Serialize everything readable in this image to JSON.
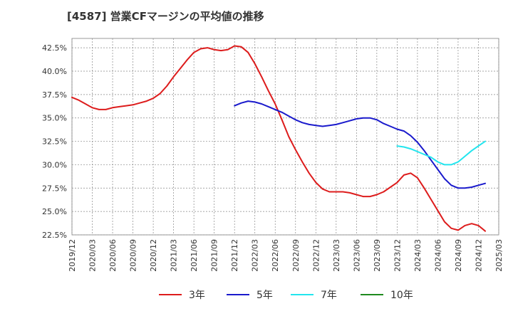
{
  "chart_data": {
    "type": "line",
    "title": "[4587]  営業CFマージンの平均値の推移",
    "xlabel": "",
    "ylabel": "",
    "ylim": [
      22.5,
      43.5
    ],
    "y_ticks": [
      22.5,
      25.0,
      27.5,
      30.0,
      32.5,
      35.0,
      37.5,
      40.0,
      42.5
    ],
    "y_tick_format": "percent_1dp",
    "x_range": [
      "2019-12",
      "2025-03"
    ],
    "x_ticks": [
      "2019/12",
      "2020/03",
      "2020/06",
      "2020/09",
      "2020/12",
      "2021/03",
      "2021/06",
      "2021/09",
      "2021/12",
      "2022/03",
      "2022/06",
      "2022/09",
      "2022/12",
      "2023/03",
      "2023/06",
      "2023/09",
      "2023/12",
      "2024/03",
      "2024/06",
      "2024/09",
      "2024/12",
      "2025/03"
    ],
    "grid": true,
    "legend_position": "bottom",
    "series": [
      {
        "name": "3年",
        "color": "#dd1c1c",
        "points": [
          [
            "2019-12",
            37.2
          ],
          [
            "2020-01",
            36.9
          ],
          [
            "2020-02",
            36.5
          ],
          [
            "2020-03",
            36.1
          ],
          [
            "2020-04",
            35.9
          ],
          [
            "2020-05",
            35.9
          ],
          [
            "2020-06",
            36.1
          ],
          [
            "2020-07",
            36.2
          ],
          [
            "2020-08",
            36.3
          ],
          [
            "2020-09",
            36.4
          ],
          [
            "2020-10",
            36.6
          ],
          [
            "2020-11",
            36.8
          ],
          [
            "2020-12",
            37.1
          ],
          [
            "2021-01",
            37.6
          ],
          [
            "2021-02",
            38.4
          ],
          [
            "2021-03",
            39.4
          ],
          [
            "2021-04",
            40.3
          ],
          [
            "2021-05",
            41.2
          ],
          [
            "2021-06",
            42.0
          ],
          [
            "2021-07",
            42.4
          ],
          [
            "2021-08",
            42.5
          ],
          [
            "2021-09",
            42.3
          ],
          [
            "2021-10",
            42.2
          ],
          [
            "2021-11",
            42.3
          ],
          [
            "2021-12",
            42.7
          ],
          [
            "2022-01",
            42.6
          ],
          [
            "2022-02",
            42.0
          ],
          [
            "2022-03",
            40.8
          ],
          [
            "2022-04",
            39.4
          ],
          [
            "2022-05",
            37.9
          ],
          [
            "2022-06",
            36.5
          ],
          [
            "2022-07",
            34.8
          ],
          [
            "2022-08",
            33.0
          ],
          [
            "2022-09",
            31.6
          ],
          [
            "2022-10",
            30.3
          ],
          [
            "2022-11",
            29.1
          ],
          [
            "2022-12",
            28.1
          ],
          [
            "2023-01",
            27.4
          ],
          [
            "2023-02",
            27.1
          ],
          [
            "2023-03",
            27.1
          ],
          [
            "2023-04",
            27.1
          ],
          [
            "2023-05",
            27.0
          ],
          [
            "2023-06",
            26.8
          ],
          [
            "2023-07",
            26.6
          ],
          [
            "2023-08",
            26.6
          ],
          [
            "2023-09",
            26.8
          ],
          [
            "2023-10",
            27.1
          ],
          [
            "2023-11",
            27.6
          ],
          [
            "2023-12",
            28.1
          ],
          [
            "2024-01",
            28.9
          ],
          [
            "2024-02",
            29.1
          ],
          [
            "2024-03",
            28.6
          ],
          [
            "2024-04",
            27.5
          ],
          [
            "2024-05",
            26.3
          ],
          [
            "2024-06",
            25.1
          ],
          [
            "2024-07",
            23.9
          ],
          [
            "2024-08",
            23.2
          ],
          [
            "2024-09",
            23.0
          ],
          [
            "2024-10",
            23.5
          ],
          [
            "2024-11",
            23.7
          ],
          [
            "2024-12",
            23.5
          ],
          [
            "2025-01",
            22.9
          ]
        ]
      },
      {
        "name": "5年",
        "color": "#1a1acc",
        "points": [
          [
            "2021-12",
            36.3
          ],
          [
            "2022-01",
            36.6
          ],
          [
            "2022-02",
            36.8
          ],
          [
            "2022-03",
            36.7
          ],
          [
            "2022-04",
            36.5
          ],
          [
            "2022-05",
            36.2
          ],
          [
            "2022-06",
            35.9
          ],
          [
            "2022-07",
            35.6
          ],
          [
            "2022-08",
            35.2
          ],
          [
            "2022-09",
            34.8
          ],
          [
            "2022-10",
            34.5
          ],
          [
            "2022-11",
            34.3
          ],
          [
            "2022-12",
            34.2
          ],
          [
            "2023-01",
            34.1
          ],
          [
            "2023-02",
            34.2
          ],
          [
            "2023-03",
            34.3
          ],
          [
            "2023-04",
            34.5
          ],
          [
            "2023-05",
            34.7
          ],
          [
            "2023-06",
            34.9
          ],
          [
            "2023-07",
            35.0
          ],
          [
            "2023-08",
            35.0
          ],
          [
            "2023-09",
            34.8
          ],
          [
            "2023-10",
            34.4
          ],
          [
            "2023-11",
            34.1
          ],
          [
            "2023-12",
            33.8
          ],
          [
            "2024-01",
            33.6
          ],
          [
            "2024-02",
            33.1
          ],
          [
            "2024-03",
            32.4
          ],
          [
            "2024-04",
            31.5
          ],
          [
            "2024-05",
            30.5
          ],
          [
            "2024-06",
            29.5
          ],
          [
            "2024-07",
            28.5
          ],
          [
            "2024-08",
            27.8
          ],
          [
            "2024-09",
            27.5
          ],
          [
            "2024-10",
            27.5
          ],
          [
            "2024-11",
            27.6
          ],
          [
            "2024-12",
            27.8
          ],
          [
            "2025-01",
            28.0
          ]
        ]
      },
      {
        "name": "7年",
        "color": "#22e5ee",
        "points": [
          [
            "2023-12",
            32.0
          ],
          [
            "2024-01",
            31.9
          ],
          [
            "2024-02",
            31.7
          ],
          [
            "2024-03",
            31.4
          ],
          [
            "2024-04",
            31.1
          ],
          [
            "2024-05",
            30.8
          ],
          [
            "2024-06",
            30.3
          ],
          [
            "2024-07",
            30.0
          ],
          [
            "2024-08",
            30.0
          ],
          [
            "2024-09",
            30.3
          ],
          [
            "2024-10",
            30.9
          ],
          [
            "2024-11",
            31.5
          ],
          [
            "2024-12",
            32.0
          ],
          [
            "2025-01",
            32.5
          ]
        ]
      },
      {
        "name": "10年",
        "color": "#1e8a1e",
        "points": []
      }
    ]
  }
}
